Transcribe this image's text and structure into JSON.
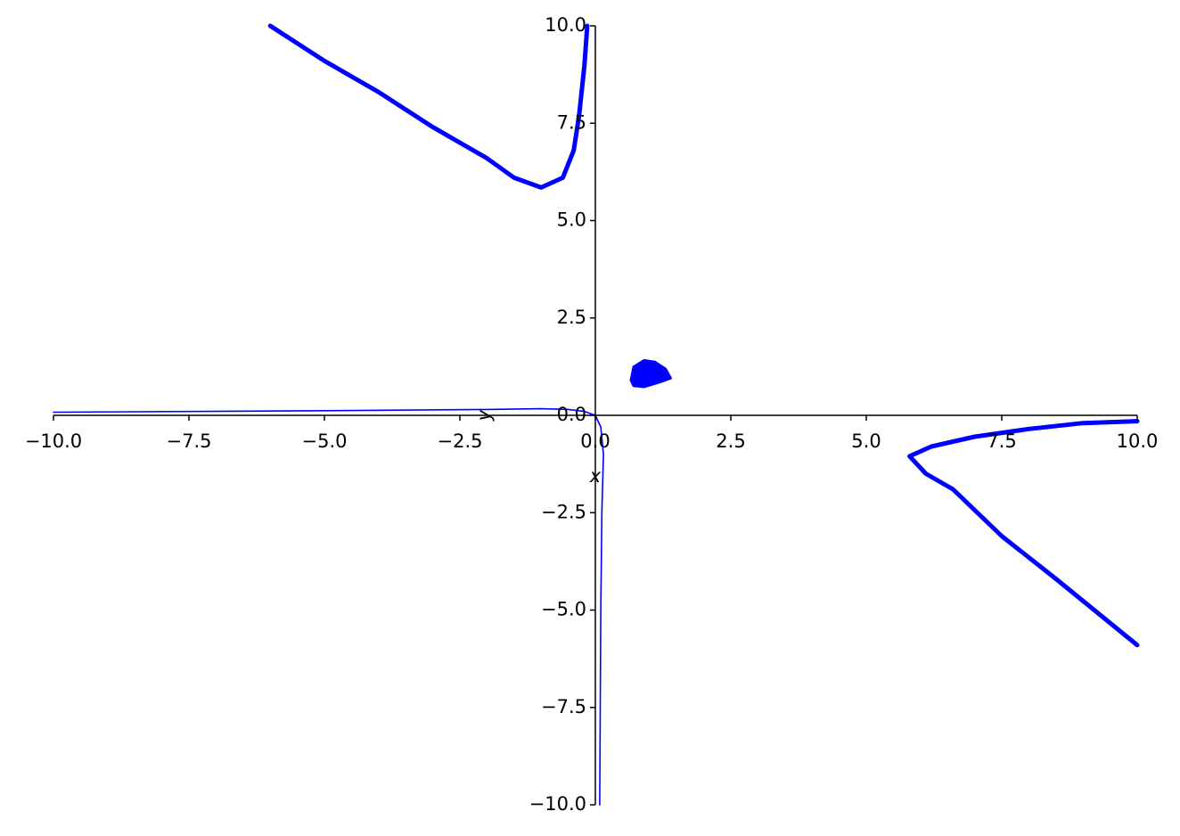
{
  "chart_data": {
    "type": "implicit",
    "xlabel": "x",
    "ylabel": "y",
    "color": "#0000ff",
    "xlim": [
      -10,
      10
    ],
    "ylim": [
      -10,
      10
    ],
    "xticks": [
      {
        "value": -10,
        "label": "−10.0"
      },
      {
        "value": -7.5,
        "label": "−7.5"
      },
      {
        "value": -5,
        "label": "−5.0"
      },
      {
        "value": -2.5,
        "label": "−2.5"
      },
      {
        "value": 0,
        "label": "0.0"
      },
      {
        "value": 2.5,
        "label": "2.5"
      },
      {
        "value": 5,
        "label": "5.0"
      },
      {
        "value": 7.5,
        "label": "7.5"
      },
      {
        "value": 10,
        "label": "10.0"
      }
    ],
    "yticks": [
      {
        "value": -10,
        "label": "−10.0"
      },
      {
        "value": -7.5,
        "label": "−7.5"
      },
      {
        "value": -5,
        "label": "−5.0"
      },
      {
        "value": -2.5,
        "label": "−2.5"
      },
      {
        "value": 0,
        "label": "0.0"
      },
      {
        "value": 2.5,
        "label": "2.5"
      },
      {
        "value": 5,
        "label": "5.0"
      },
      {
        "value": 7.5,
        "label": "7.5"
      },
      {
        "value": 10,
        "label": "10.0"
      }
    ],
    "series": [
      {
        "x": [
          -6,
          -5,
          -4,
          -3,
          -2,
          -1.5,
          -1,
          -0.6,
          -0.4,
          -0.3,
          -0.2,
          -0.15
        ],
        "y": [
          10,
          9.1,
          8.3,
          7.4,
          6.6,
          6.1,
          5.85,
          6.1,
          6.8,
          7.7,
          9,
          10
        ]
      },
      {
        "x": [
          10,
          9,
          8,
          7,
          6.2,
          5.8,
          6.1,
          6.6,
          7.5,
          8.5,
          10
        ],
        "y": [
          -0.15,
          -0.2,
          -0.35,
          -0.55,
          -0.8,
          -1.05,
          -1.5,
          -1.9,
          -3.1,
          -4.2,
          -5.9
        ]
      },
      {
        "x": [
          -10,
          -5,
          -2,
          -1,
          -0.5,
          -0.2,
          0,
          0.1,
          0.15,
          0.12,
          0.1,
          0.08
        ],
        "y": [
          0.08,
          0.12,
          0.15,
          0.17,
          0.15,
          0.1,
          0,
          -0.3,
          -1,
          -2.5,
          -5,
          -10
        ]
      },
      {
        "x": [
          0.65,
          0.7,
          0.9,
          1.1,
          1.3,
          1.4,
          1.2,
          0.9,
          0.7
        ],
        "y": [
          0.9,
          1.25,
          1.42,
          1.38,
          1.2,
          0.95,
          0.85,
          0.72,
          0.75
        ],
        "fill": true
      }
    ]
  }
}
